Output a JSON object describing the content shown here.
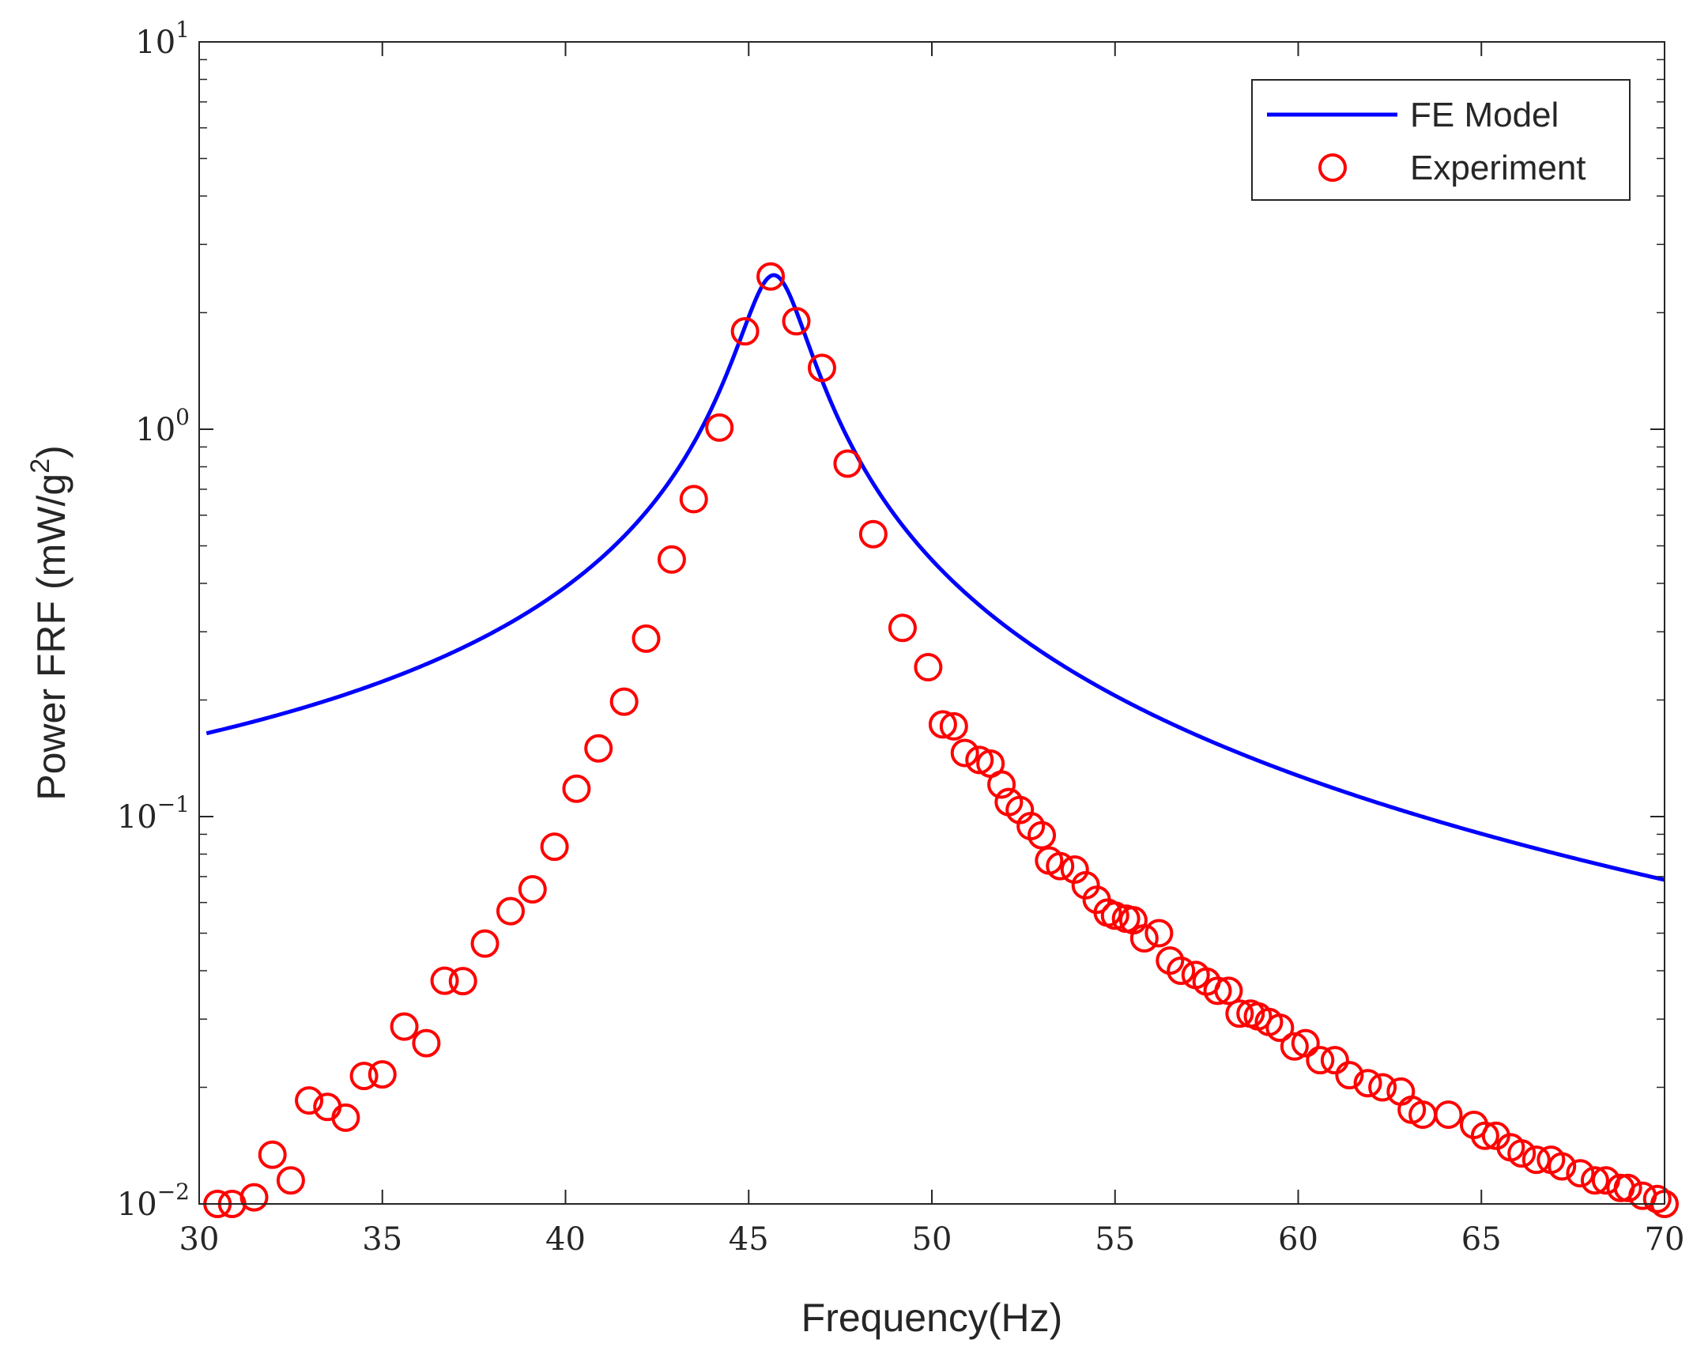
{
  "chart_data": {
    "type": "line",
    "title": "",
    "xlabel": "Frequency(Hz)",
    "ylabel": "Power FRF (mW/g²)",
    "ylabel_parts": {
      "main": "Power FRF (mW/g",
      "sup": "2",
      "close": ")"
    },
    "xlim": [
      30,
      70
    ],
    "ylim": [
      0.01,
      10
    ],
    "yscale": "log",
    "grid": false,
    "legend_position": "top-right",
    "x_ticks": [
      "30",
      "35",
      "40",
      "45",
      "50",
      "55",
      "60",
      "65",
      "70"
    ],
    "y_ticks": [
      {
        "base": "10",
        "exp": "−2",
        "value": 0.01
      },
      {
        "base": "10",
        "exp": "−1",
        "value": 0.1
      },
      {
        "base": "10",
        "exp": "0",
        "value": 1
      },
      {
        "base": "10",
        "exp": "1",
        "value": 10
      }
    ],
    "model": {
      "fn": 45.7,
      "zeta": 0.0185,
      "peak": 2.5,
      "x_start": 30.2,
      "x_end": 70
    },
    "series": [
      {
        "name": "FE Model",
        "kind": "line",
        "color": "#0000ff"
      },
      {
        "name": "Experiment",
        "kind": "markers",
        "marker": "open-circle",
        "color": "#ff0000",
        "x": [
          30.5,
          30.9,
          31.5,
          32.0,
          32.5,
          33.0,
          33.5,
          34.0,
          34.5,
          35.0,
          35.6,
          36.2,
          36.7,
          37.2,
          37.8,
          38.5,
          39.1,
          39.7,
          40.3,
          40.9,
          41.6,
          42.2,
          42.9,
          43.5,
          44.2,
          44.9,
          45.6,
          46.3,
          47.0,
          47.7,
          48.4,
          49.2,
          49.9,
          50.3,
          50.6,
          50.9,
          51.3,
          51.6,
          51.9,
          52.1,
          52.4,
          52.7,
          53.0,
          53.2,
          53.5,
          53.9,
          54.2,
          54.5,
          54.8,
          55.0,
          55.3,
          55.5,
          55.8,
          56.2,
          56.5,
          56.8,
          57.2,
          57.5,
          57.8,
          58.1,
          58.4,
          58.7,
          58.9,
          59.2,
          59.5,
          59.9,
          60.2,
          60.6,
          61.0,
          61.4,
          61.9,
          62.3,
          62.8,
          63.1,
          63.4,
          64.1,
          64.8,
          65.1,
          65.4,
          65.8,
          66.1,
          66.5,
          66.9,
          67.2,
          67.7,
          68.1,
          68.4,
          68.8,
          69.0,
          69.4,
          69.8,
          70.0
        ],
        "y": [
          0.01,
          0.01,
          0.0104,
          0.0134,
          0.0115,
          0.0185,
          0.0178,
          0.0167,
          0.0214,
          0.0216,
          0.0287,
          0.026,
          0.0377,
          0.0376,
          0.047,
          0.057,
          0.0649,
          0.0836,
          0.118,
          0.15,
          0.198,
          0.288,
          0.461,
          0.66,
          1.01,
          1.79,
          2.48,
          1.9,
          1.44,
          0.815,
          0.536,
          0.307,
          0.243,
          0.173,
          0.171,
          0.146,
          0.14,
          0.137,
          0.121,
          0.109,
          0.104,
          0.0945,
          0.0895,
          0.077,
          0.0745,
          0.073,
          0.0665,
          0.061,
          0.0565,
          0.0555,
          0.0545,
          0.054,
          0.0485,
          0.05,
          0.0425,
          0.04,
          0.039,
          0.0375,
          0.0355,
          0.0355,
          0.031,
          0.031,
          0.0305,
          0.0295,
          0.0285,
          0.0255,
          0.026,
          0.0235,
          0.0235,
          0.0215,
          0.0205,
          0.02,
          0.0195,
          0.0175,
          0.017,
          0.017,
          0.016,
          0.015,
          0.015,
          0.014,
          0.0135,
          0.013,
          0.013,
          0.0125,
          0.012,
          0.0115,
          0.0115,
          0.011,
          0.011,
          0.0105,
          0.0103,
          0.01
        ]
      }
    ]
  }
}
